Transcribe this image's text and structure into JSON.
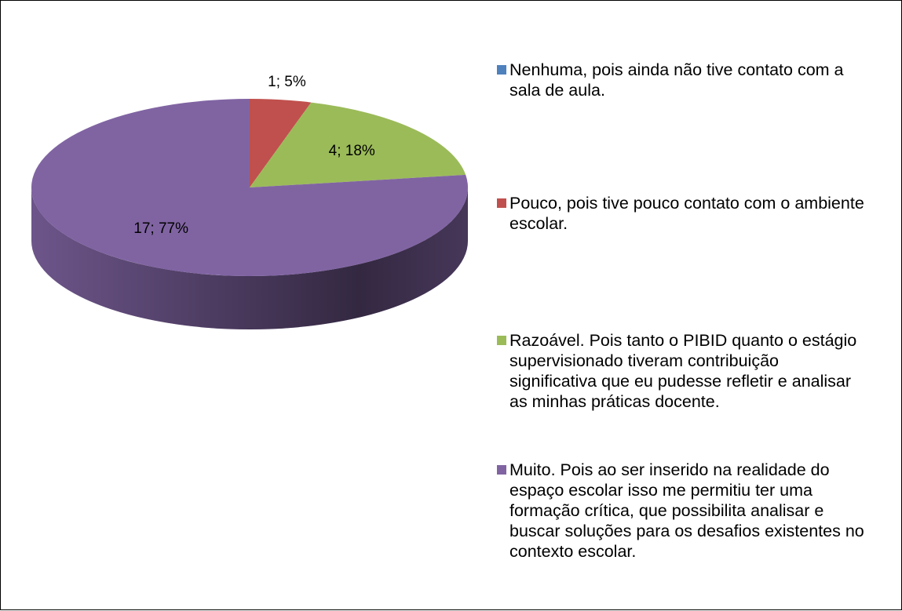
{
  "chart_data": {
    "type": "pie",
    "categories": [
      "Nenhuma, pois ainda não tive contato com a sala de aula.",
      "Pouco, pois tive pouco contato com o ambiente escolar.",
      "Razoável. Pois tanto o PIBID quanto o estágio supervisionado tiveram contribuição significativa que eu pudesse refletir e analisar as minhas práticas docente.",
      "Muito. Pois ao ser inserido na realidade do espaço escolar isso me permitiu ter uma formação crítica, que possibilita analisar e buscar soluções para os desafios existentes no contexto escolar."
    ],
    "values": [
      0,
      1,
      4,
      17
    ],
    "value_labels": [
      null,
      "1; 5%",
      "4; 18%",
      "17; 77%"
    ],
    "colors": [
      "#4f81bd",
      "#c0504d",
      "#9bbb59",
      "#8064a2"
    ],
    "legend": "right"
  }
}
